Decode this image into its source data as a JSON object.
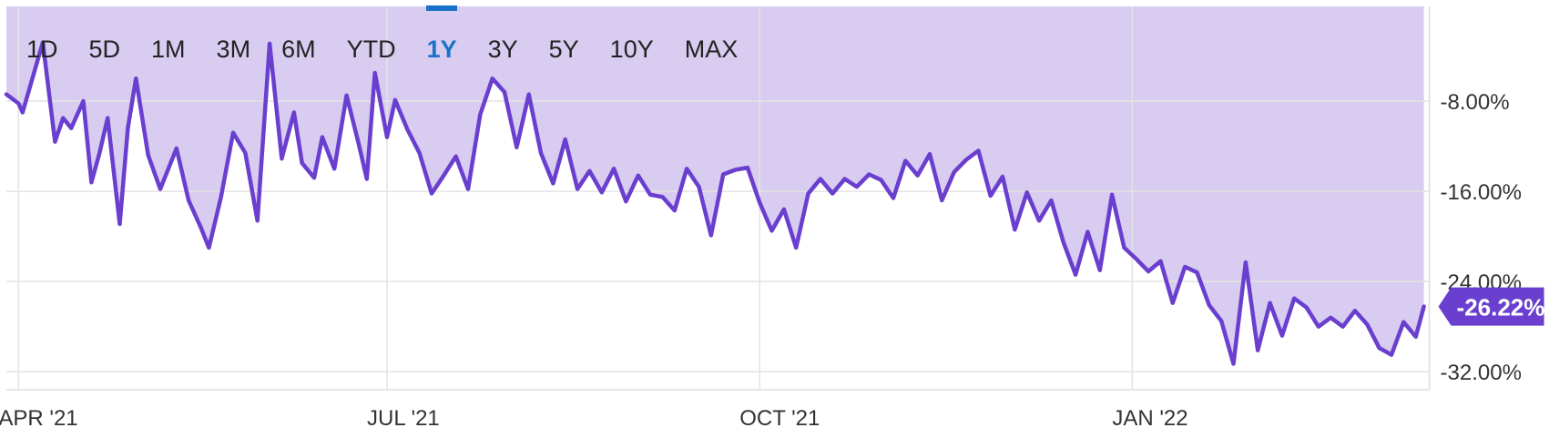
{
  "ranges": {
    "items": [
      "1D",
      "5D",
      "1M",
      "3M",
      "6M",
      "YTD",
      "1Y",
      "3Y",
      "5Y",
      "10Y",
      "MAX"
    ],
    "active": "1Y"
  },
  "chart_data": {
    "type": "area",
    "title": "",
    "xlabel": "",
    "ylabel": "",
    "y_axis_side": "right",
    "y_ticks": [
      -8,
      -16,
      -24,
      -32
    ],
    "y_tick_labels": [
      "-8.00%",
      "-16.00%",
      "-24.00%",
      "-32.00%"
    ],
    "ylim": [
      -33.6,
      0.4
    ],
    "x_axis": {
      "start": "2021-03-29",
      "end": "2022-03-15",
      "ticks": [
        {
          "date": "2021-04-01",
          "label": "APR '21"
        },
        {
          "date": "2021-07-01",
          "label": "JUL '21"
        },
        {
          "date": "2021-10-01",
          "label": "OCT '21"
        },
        {
          "date": "2022-01-01",
          "label": "JAN '22"
        }
      ]
    },
    "grid": true,
    "last_value_label": "-26.22%",
    "colors": {
      "line": "#6a3fcf",
      "fill": "#d8ccf0",
      "label_bg": "#6a3fcf",
      "grid": "#e3e3e3"
    },
    "series": [
      {
        "x": [
          "2021-03-29",
          "2021-04-01",
          "2021-04-02",
          "2021-04-07",
          "2021-04-10",
          "2021-04-12",
          "2021-04-14",
          "2021-04-17",
          "2021-04-19",
          "2021-04-21",
          "2021-04-23",
          "2021-04-26",
          "2021-04-28",
          "2021-04-30",
          "2021-05-03",
          "2021-05-06",
          "2021-05-10",
          "2021-05-13",
          "2021-05-16",
          "2021-05-18",
          "2021-05-21",
          "2021-05-24",
          "2021-05-27",
          "2021-05-30",
          "2021-06-02",
          "2021-06-05",
          "2021-06-08",
          "2021-06-10",
          "2021-06-13",
          "2021-06-15",
          "2021-06-18",
          "2021-06-21",
          "2021-06-24",
          "2021-06-26",
          "2021-06-28",
          "2021-07-01",
          "2021-07-03",
          "2021-07-06",
          "2021-07-09",
          "2021-07-12",
          "2021-07-15",
          "2021-07-18",
          "2021-07-21",
          "2021-07-24",
          "2021-07-27",
          "2021-07-30",
          "2021-08-02",
          "2021-08-05",
          "2021-08-08",
          "2021-08-11",
          "2021-08-14",
          "2021-08-17",
          "2021-08-20",
          "2021-08-23",
          "2021-08-26",
          "2021-08-29",
          "2021-09-01",
          "2021-09-04",
          "2021-09-07",
          "2021-09-10",
          "2021-09-13",
          "2021-09-16",
          "2021-09-19",
          "2021-09-22",
          "2021-09-25",
          "2021-09-28",
          "2021-10-01",
          "2021-10-04",
          "2021-10-07",
          "2021-10-10",
          "2021-10-13",
          "2021-10-16",
          "2021-10-19",
          "2021-10-22",
          "2021-10-25",
          "2021-10-28",
          "2021-10-31",
          "2021-11-03",
          "2021-11-06",
          "2021-11-09",
          "2021-11-12",
          "2021-11-15",
          "2021-11-18",
          "2021-11-21",
          "2021-11-24",
          "2021-11-27",
          "2021-11-30",
          "2021-12-03",
          "2021-12-06",
          "2021-12-09",
          "2021-12-12",
          "2021-12-15",
          "2021-12-18",
          "2021-12-21",
          "2021-12-24",
          "2021-12-27",
          "2021-12-30",
          "2022-01-02",
          "2022-01-05",
          "2022-01-08",
          "2022-01-11",
          "2022-01-14",
          "2022-01-17",
          "2022-01-20",
          "2022-01-23",
          "2022-01-26",
          "2022-01-29",
          "2022-02-01",
          "2022-02-04",
          "2022-02-07",
          "2022-02-10",
          "2022-02-13",
          "2022-02-16",
          "2022-02-19",
          "2022-02-22",
          "2022-02-25",
          "2022-02-28",
          "2022-03-03",
          "2022-03-06",
          "2022-03-09",
          "2022-03-12",
          "2022-03-14"
        ],
        "y": [
          -7.4,
          -8.2,
          -9.0,
          -2.8,
          -11.6,
          -9.5,
          -10.4,
          -8.0,
          -15.2,
          -12.6,
          -9.5,
          -18.9,
          -10.4,
          -6.0,
          -12.8,
          -15.8,
          -12.2,
          -16.8,
          -19.2,
          -21.0,
          -16.5,
          -10.8,
          -12.6,
          -18.6,
          -2.9,
          -13.1,
          -9.0,
          -13.5,
          -14.8,
          -11.2,
          -14.0,
          -7.5,
          -11.8,
          -14.9,
          -5.5,
          -11.2,
          -7.9,
          -10.5,
          -12.6,
          -16.2,
          -14.6,
          -12.9,
          -15.8,
          -9.2,
          -6.0,
          -7.2,
          -12.1,
          -7.4,
          -12.6,
          -15.3,
          -11.4,
          -15.8,
          -14.2,
          -16.1,
          -14.0,
          -16.9,
          -14.6,
          -16.3,
          -16.5,
          -17.7,
          -14.0,
          -15.6,
          -19.9,
          -14.5,
          -14.1,
          -13.9,
          -17.0,
          -19.5,
          -17.6,
          -21.0,
          -16.2,
          -14.9,
          -16.2,
          -14.9,
          -15.6,
          -14.5,
          -15.0,
          -16.6,
          -13.3,
          -14.6,
          -12.7,
          -16.8,
          -14.3,
          -13.2,
          -12.4,
          -16.4,
          -14.7,
          -19.4,
          -16.1,
          -18.6,
          -16.8,
          -20.5,
          -23.4,
          -19.6,
          -23.0,
          -16.3,
          -21.0,
          -22.0,
          -23.1,
          -22.2,
          -25.9,
          -22.7,
          -23.2,
          -26.1,
          -27.5,
          -31.3,
          -22.3,
          -30.1,
          -25.9,
          -28.8,
          -25.5,
          -26.3,
          -28.0,
          -27.2,
          -28.0,
          -26.6,
          -27.8,
          -29.9,
          -30.5,
          -27.6,
          -28.9,
          -26.22
        ]
      }
    ]
  }
}
